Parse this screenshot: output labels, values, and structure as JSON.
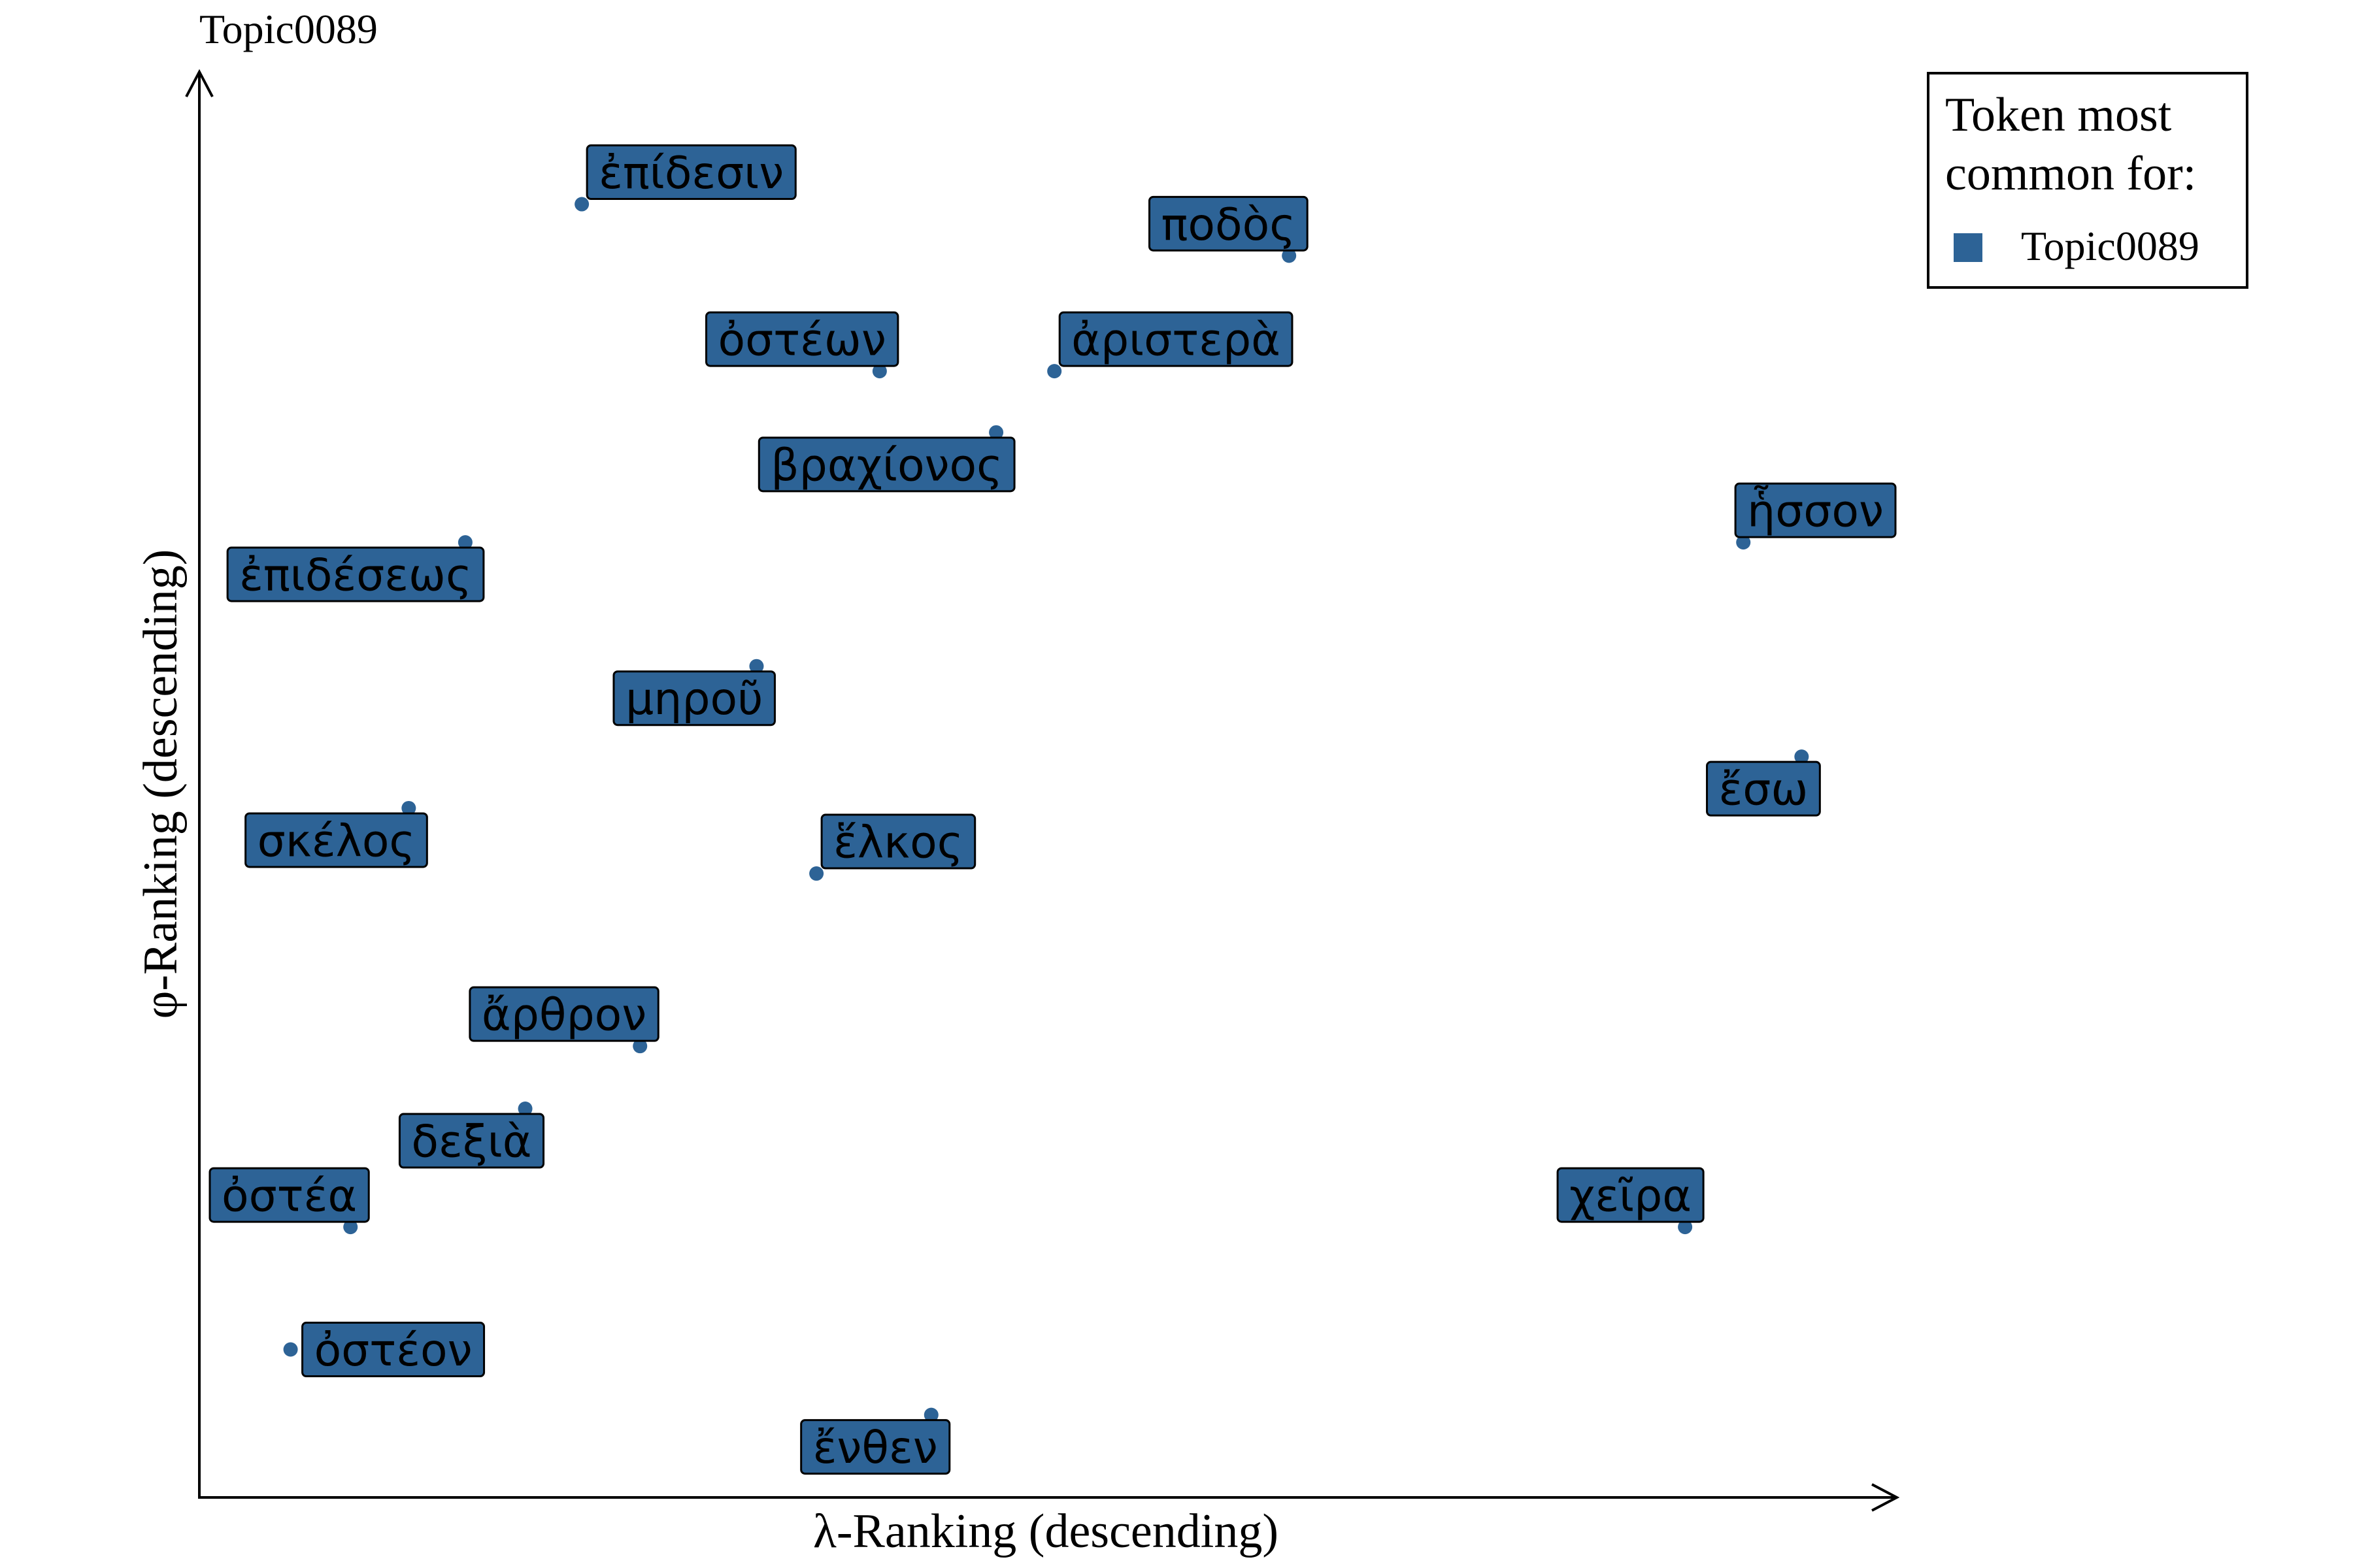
{
  "chart_data": {
    "type": "scatter",
    "title": "Topic0089",
    "xlabel": "λ-Ranking (descending)",
    "ylabel": "φ-Ranking (descending)",
    "xlim": [
      0,
      100
    ],
    "ylim": [
      0,
      100
    ],
    "grid": false,
    "legend": {
      "title_lines": [
        "Token most",
        "common for:"
      ],
      "placement": "top-right",
      "entries": [
        {
          "label": "Topic0089",
          "color": "#2d6396"
        }
      ]
    },
    "series": [
      {
        "name": "Topic0089",
        "color": "#2d6396",
        "points": [
          {
            "label": "ἐπίδεσιν",
            "x": 22.0,
            "y": 91.9,
            "label_pos": "upper-right"
          },
          {
            "label": "ποδὸς",
            "x": 64.5,
            "y": 88.2,
            "label_pos": "upper-left"
          },
          {
            "label": "ὀστέων",
            "x": 39.9,
            "y": 79.9,
            "label_pos": "upper-left"
          },
          {
            "label": "ἀριστερὰ",
            "x": 50.4,
            "y": 79.9,
            "label_pos": "upper-right"
          },
          {
            "label": "βραχίονος",
            "x": 46.9,
            "y": 75.5,
            "label_pos": "lower-left"
          },
          {
            "label": "ἧσσον",
            "x": 91.8,
            "y": 67.6,
            "label_pos": "upper-right"
          },
          {
            "label": "ἐπιδέσεως",
            "x": 15.0,
            "y": 67.6,
            "label_pos": "lower-left"
          },
          {
            "label": "μηροῦ",
            "x": 32.5,
            "y": 58.7,
            "label_pos": "lower-left"
          },
          {
            "label": "ἔσω",
            "x": 95.3,
            "y": 52.2,
            "label_pos": "lower-left"
          },
          {
            "label": "σκέλος",
            "x": 11.6,
            "y": 48.5,
            "label_pos": "lower-left"
          },
          {
            "label": "ἕλκος",
            "x": 36.1,
            "y": 43.8,
            "label_pos": "upper-right"
          },
          {
            "label": "ἄρθρον",
            "x": 25.5,
            "y": 31.4,
            "label_pos": "upper-left"
          },
          {
            "label": "δεξιὰ",
            "x": 18.6,
            "y": 26.9,
            "label_pos": "lower-left"
          },
          {
            "label": "ὀστέα",
            "x": 8.1,
            "y": 18.4,
            "label_pos": "upper-left"
          },
          {
            "label": "χεῖρα",
            "x": 88.3,
            "y": 18.4,
            "label_pos": "upper-left"
          },
          {
            "label": "ὀστέον",
            "x": 4.5,
            "y": 9.6,
            "label_pos": "right"
          },
          {
            "label": "ἔνθεν",
            "x": 43.0,
            "y": 4.9,
            "label_pos": "lower-left"
          }
        ]
      }
    ]
  }
}
